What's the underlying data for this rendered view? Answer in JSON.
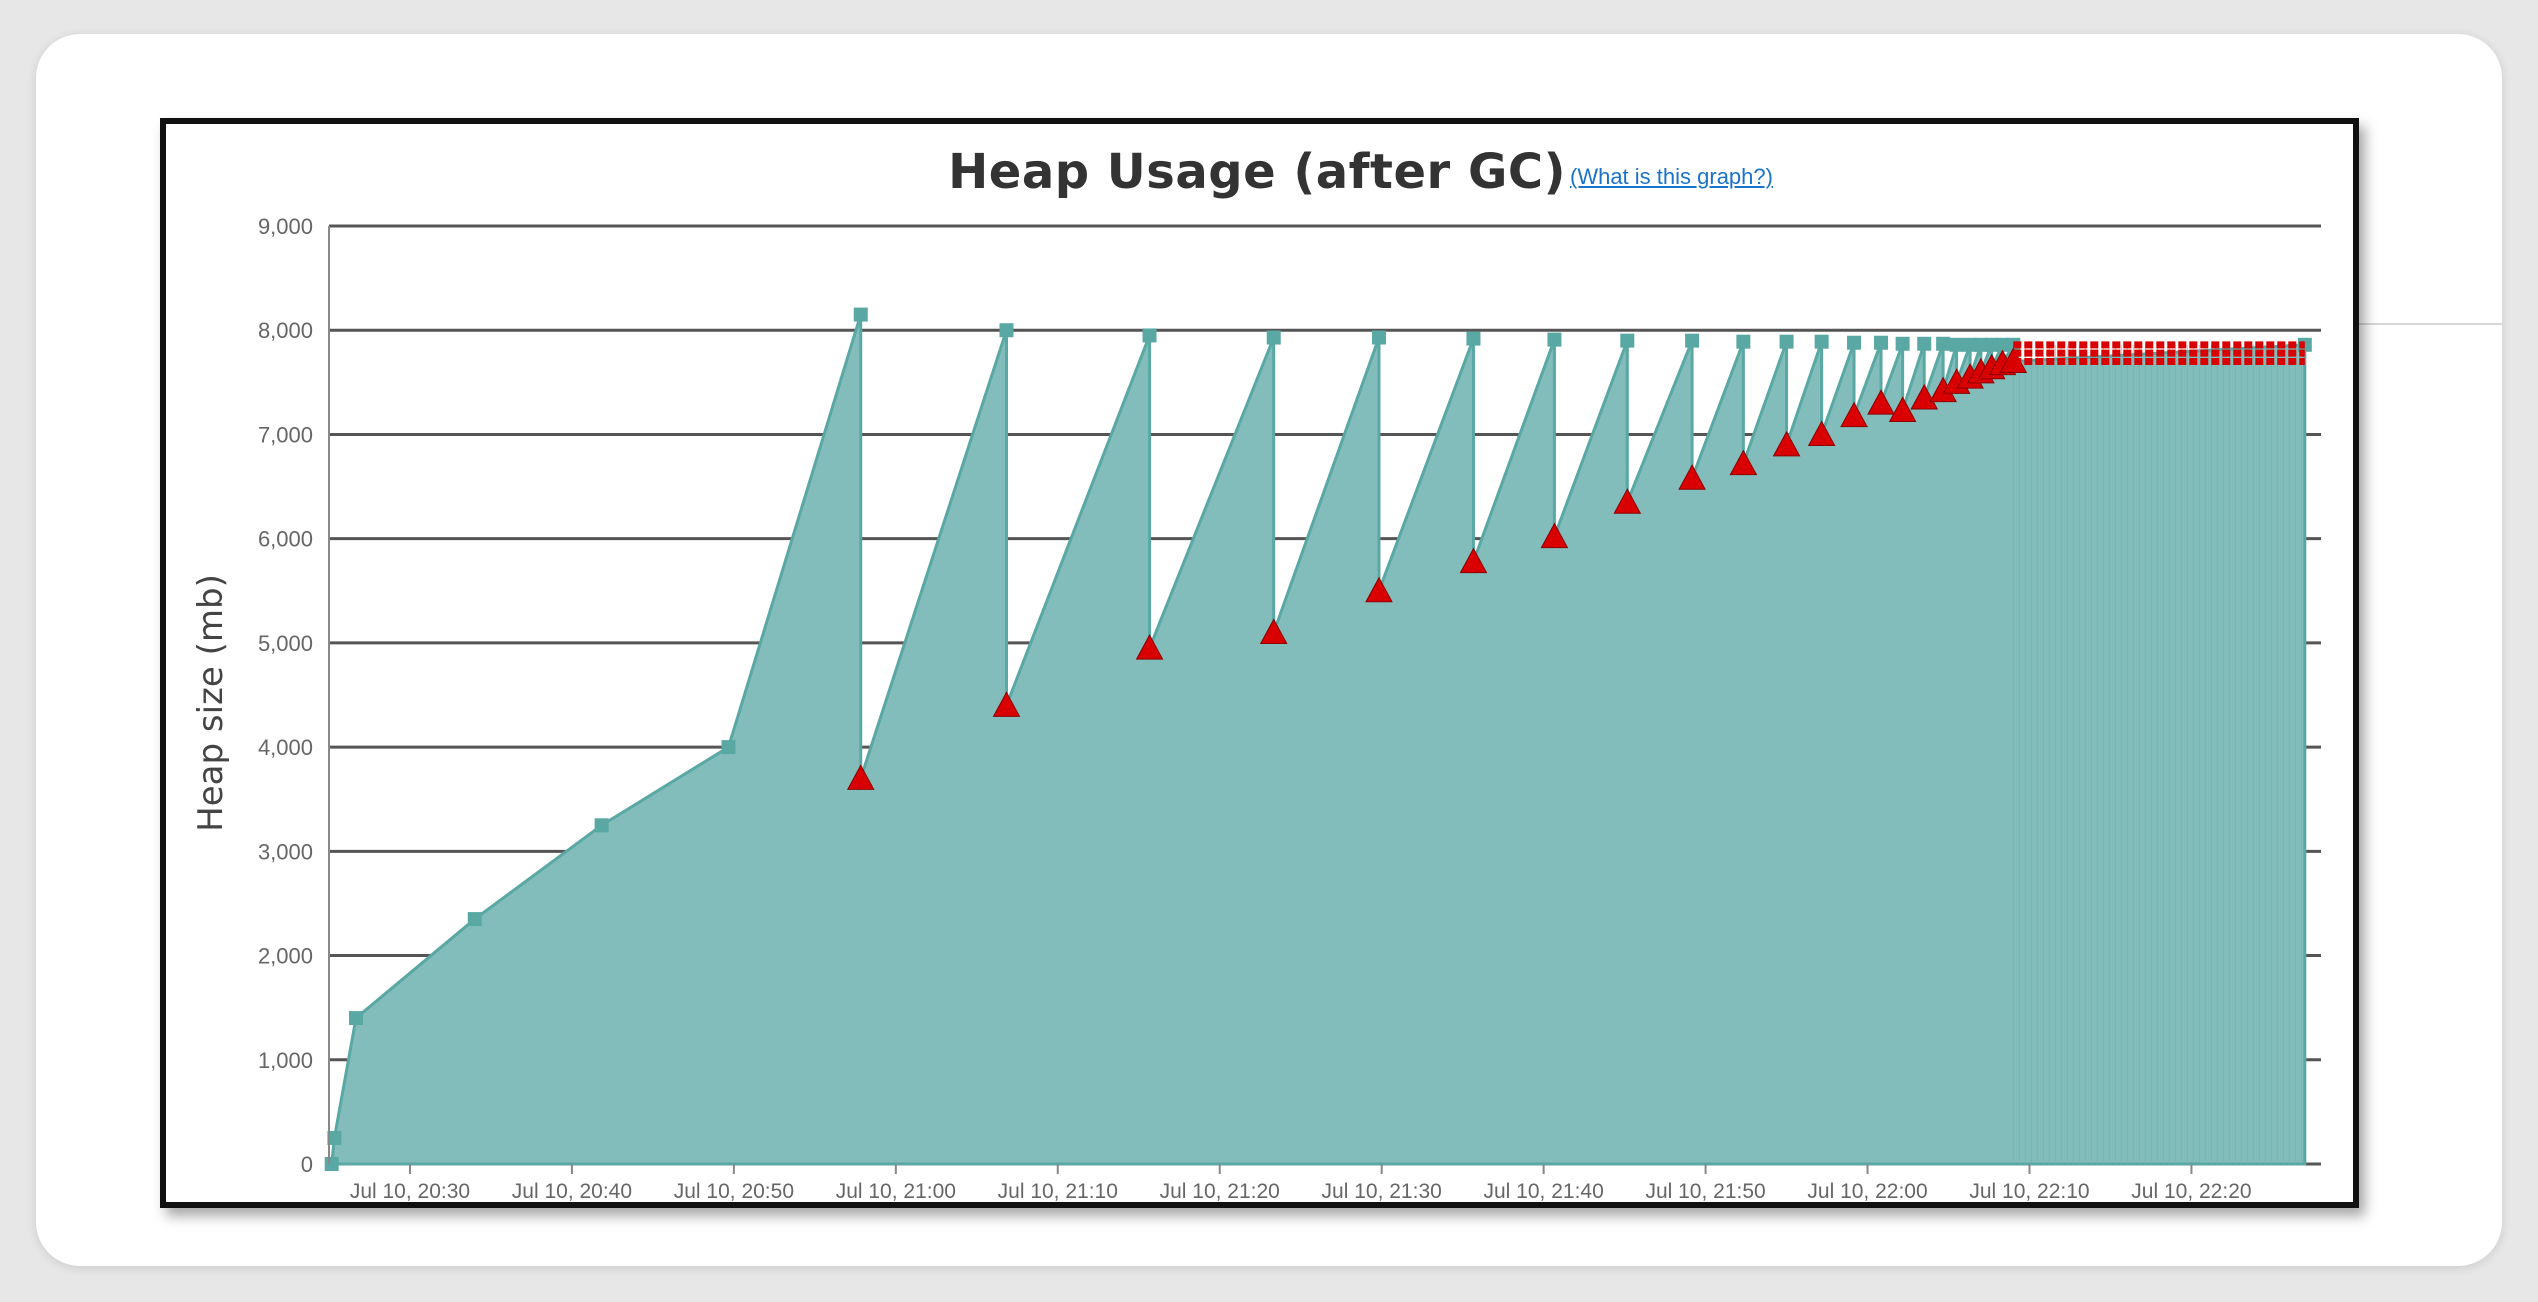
{
  "chart_data": {
    "type": "area",
    "title": "Heap Usage (after GC)",
    "help_link": "(What is this graph?)",
    "xlabel": "",
    "ylabel": "Heap size (mb)",
    "ylim": [
      0,
      9000
    ],
    "yticks": [
      0,
      1000,
      2000,
      3000,
      4000,
      5000,
      6000,
      7000,
      8000,
      9000
    ],
    "ytick_labels": [
      "0",
      "1,000",
      "2,000",
      "3,000",
      "4,000",
      "5,000",
      "6,000",
      "7,000",
      "8,000",
      "9,000"
    ],
    "xlim": [
      "20:25",
      "22:28"
    ],
    "xticks": [
      "20:30",
      "20:40",
      "20:50",
      "21:00",
      "21:10",
      "21:20",
      "21:30",
      "21:40",
      "21:50",
      "22:00",
      "22:10",
      "22:20"
    ],
    "xtick_labels": [
      "Jul 10, 20:30",
      "Jul 10, 20:40",
      "Jul 10, 20:50",
      "Jul 10, 21:00",
      "Jul 10, 21:10",
      "Jul 10, 21:20",
      "Jul 10, 21:30",
      "Jul 10, 21:40",
      "Jul 10, 21:50",
      "Jul 10, 22:00",
      "Jul 10, 22:10",
      "Jul 10, 22:20"
    ],
    "grid": true,
    "colors": {
      "area_fill": "#82bdbb",
      "area_line": "#5aa8a4",
      "gc_marker": "#d80000",
      "grid": "#555555",
      "frame": "#111111"
    },
    "series": [
      {
        "kind": "heap_after_gc_area",
        "points": [
          [
            "20:25:10",
            0
          ],
          [
            "20:25:20",
            250
          ],
          [
            "20:26:40",
            1400
          ],
          [
            "20:34:00",
            2350
          ],
          [
            "20:41:50",
            3250
          ],
          [
            "20:49:40",
            4000
          ],
          [
            "20:57:50",
            8150
          ],
          [
            "20:57:50",
            3700
          ],
          [
            "21:06:50",
            8000
          ],
          [
            "21:06:50",
            4400
          ],
          [
            "21:15:40",
            7950
          ],
          [
            "21:15:40",
            4950
          ],
          [
            "21:23:20",
            7930
          ],
          [
            "21:23:20",
            5100
          ],
          [
            "21:29:50",
            7930
          ],
          [
            "21:29:50",
            5500
          ],
          [
            "21:35:40",
            7920
          ],
          [
            "21:35:40",
            5780
          ],
          [
            "21:40:40",
            7910
          ],
          [
            "21:40:40",
            6020
          ],
          [
            "21:45:10",
            7900
          ],
          [
            "21:45:10",
            6350
          ],
          [
            "21:49:10",
            7900
          ],
          [
            "21:49:10",
            6580
          ],
          [
            "21:52:20",
            7890
          ],
          [
            "21:52:20",
            6720
          ],
          [
            "21:55:00",
            7890
          ],
          [
            "21:55:00",
            6900
          ],
          [
            "21:57:10",
            7890
          ],
          [
            "21:57:10",
            7000
          ],
          [
            "21:59:10",
            7880
          ],
          [
            "21:59:10",
            7180
          ],
          [
            "22:00:50",
            7880
          ],
          [
            "22:00:50",
            7300
          ],
          [
            "22:02:10",
            7870
          ],
          [
            "22:02:10",
            7230
          ],
          [
            "22:03:30",
            7870
          ],
          [
            "22:03:30",
            7350
          ],
          [
            "22:04:40",
            7870
          ],
          [
            "22:04:40",
            7420
          ],
          [
            "22:05:30",
            7860
          ],
          [
            "22:05:30",
            7500
          ],
          [
            "22:06:20",
            7860
          ],
          [
            "22:06:20",
            7550
          ],
          [
            "22:07:00",
            7860
          ],
          [
            "22:07:00",
            7600
          ],
          [
            "22:07:40",
            7860
          ],
          [
            "22:07:40",
            7640
          ],
          [
            "22:08:20",
            7860
          ],
          [
            "22:08:20",
            7680
          ],
          [
            "22:09:00",
            7860
          ],
          [
            "22:09:00",
            7700
          ],
          [
            "22:27:00",
            7860
          ],
          [
            "22:27:00",
            7700
          ]
        ]
      },
      {
        "kind": "full_gc_events",
        "marker": "triangle",
        "points": [
          [
            "20:57:50",
            3700
          ],
          [
            "21:06:50",
            4400
          ],
          [
            "21:15:40",
            4950
          ],
          [
            "21:23:20",
            5100
          ],
          [
            "21:29:50",
            5500
          ],
          [
            "21:35:40",
            5780
          ],
          [
            "21:40:40",
            6020
          ],
          [
            "21:45:10",
            6350
          ],
          [
            "21:49:10",
            6580
          ],
          [
            "21:52:20",
            6720
          ],
          [
            "21:55:00",
            6900
          ],
          [
            "21:57:10",
            7000
          ],
          [
            "21:59:10",
            7180
          ],
          [
            "22:00:50",
            7300
          ],
          [
            "22:02:10",
            7230
          ],
          [
            "22:03:30",
            7350
          ],
          [
            "22:04:40",
            7420
          ],
          [
            "22:05:30",
            7500
          ],
          [
            "22:06:20",
            7550
          ],
          [
            "22:07:00",
            7600
          ],
          [
            "22:07:40",
            7640
          ],
          [
            "22:08:20",
            7680
          ],
          [
            "22:09:00",
            7700
          ]
        ],
        "continuous_band": {
          "from": "22:09:00",
          "to": "22:27:00",
          "values": [
            7700,
            7780,
            7860
          ]
        }
      }
    ]
  }
}
